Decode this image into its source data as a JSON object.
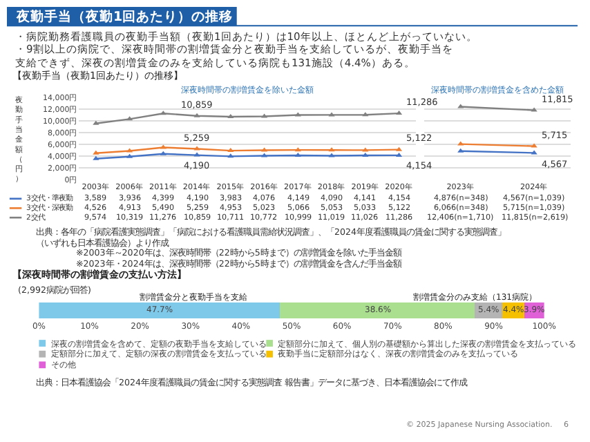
{
  "chart_data": [
    {
      "type": "line",
      "title": "夜勤手当（夜勤1回あたり）の推移",
      "ylabel": "夜勤手当金額（円）",
      "categories": [
        "2003年",
        "2006年",
        "2011年",
        "2014年",
        "2015年",
        "2016年",
        "2017年",
        "2018年",
        "2019年",
        "2020年"
      ],
      "series": [
        {
          "name": "3交代・準夜勤",
          "color": "#4472c4",
          "values": [
            3589,
            3936,
            4399,
            4190,
            3983,
            4076,
            4149,
            4090,
            4141,
            4154
          ],
          "value_labels": [
            "3,589",
            "3,936",
            "4,399",
            "4,190",
            "3,983",
            "4,076",
            "4,149",
            "4,090",
            "4,141",
            "4,154"
          ]
        },
        {
          "name": "3交代・深夜勤",
          "color": "#ed7d31",
          "values": [
            4526,
            4913,
            5490,
            5259,
            4953,
            5023,
            5066,
            5053,
            5033,
            5122
          ],
          "value_labels": [
            "4,526",
            "4,913",
            "5,490",
            "5,259",
            "4,953",
            "5,023",
            "5,066",
            "5,053",
            "5,033",
            "5,122"
          ]
        },
        {
          "name": "2交代",
          "color": "#808080",
          "values": [
            9574,
            10319,
            11276,
            10859,
            10711,
            10772,
            10999,
            11019,
            11026,
            11286
          ],
          "value_labels": [
            "9,574",
            "10,319",
            "11,276",
            "10,859",
            "10,711",
            "10,772",
            "10,999",
            "11,019",
            "11,026",
            "11,286"
          ]
        }
      ],
      "ylim": [
        0,
        14000
      ],
      "yticks": [
        {
          "value": 0,
          "label": "0円"
        },
        {
          "value": 2000,
          "label": "2,000円"
        },
        {
          "value": 4000,
          "label": "4,000円"
        },
        {
          "value": 6000,
          "label": "6,000円"
        },
        {
          "value": 8000,
          "label": "8,000円"
        },
        {
          "value": 10000,
          "label": "10,000円"
        },
        {
          "value": 12000,
          "label": "12,000円"
        },
        {
          "value": 14000,
          "label": "14,000円"
        }
      ],
      "grid": "y",
      "marker": "triangle",
      "line_style": "solid",
      "legend": "bottom left",
      "annotations": [
        "・病院勤務看護職員の夜勤手当額（夜勤1回あたり）は10年以上、ほとんど上がっていない。",
        "・9割以上の病院で、深夜時間帯の割増賃金分と夜勤手当を支給しているが、夜勤手当を支給できず、深夜の割増賃金のみを支給している病院も131施設（4.4%）ある。",
        "【夜勤手当（夜勤1回あたり）の推移】",
        "深夜時間帯の割増賃金を除いた金額",
        "出典：各年の「病院看護実態調査」「病院における看護職員需給状況調査」、「2024年度看護職員の賃金に関する実態調査」（いずれも日本看護協会）より作成",
        "※2003年～2020年は、深夜時間帯（22時から5時まで）の割増賃金を除いた手当金額",
        "※2023年・2024年は、深夜時間帯（22時から5時まで）の割増賃金を含んだ手当金額",
        {
          "text": "10,859",
          "x": "2014年",
          "y": 10859
        },
        {
          "text": "5,259",
          "x": "2014年",
          "y": 5259
        },
        {
          "text": "4,190",
          "x": "2014年",
          "y": 4190
        },
        {
          "text": "11,286",
          "x": "2020年",
          "y": 11286
        },
        {
          "text": "5,122",
          "x": "2020年",
          "y": 5122
        },
        {
          "text": "4,154",
          "x": "2020年",
          "y": 4154
        }
      ]
    },
    {
      "type": "line",
      "categories": [
        "2023年",
        "2024年"
      ],
      "series": [
        {
          "color": "#4472c4",
          "values": [
            4876,
            4567
          ],
          "value_labels": [
            "4,876(n=348)",
            "4,567(n=1,039)"
          ]
        },
        {
          "color": "#ed7d31",
          "values": [
            6066,
            5715
          ],
          "value_labels": [
            "6,066(n=348)",
            "5,715(n=1,039)"
          ]
        },
        {
          "color": "#808080",
          "values": [
            12406,
            11815
          ],
          "value_labels": [
            "12,406(n=1,710)",
            "11,815(n=2,619)"
          ]
        }
      ],
      "ylim": [
        0,
        14000
      ],
      "yticks": [
        {
          "value": 0,
          "label": null
        },
        {
          "value": 2000,
          "label": null
        },
        {
          "value": 4000,
          "label": null
        },
        {
          "value": 6000,
          "label": null
        },
        {
          "value": 8000,
          "label": null
        },
        {
          "value": 10000,
          "label": null
        },
        {
          "value": 12000,
          "label": null
        },
        {
          "value": 14000,
          "label": null
        }
      ],
      "tick_labels": "x",
      "grid": "y",
      "marker": "triangle",
      "line_style": "solid",
      "annotations": [
        "深夜時間帯の割増賃金を含めた金額",
        {
          "text": "11,815",
          "x": "2024年",
          "y": 11815
        },
        {
          "text": "5,715",
          "x": "2024年",
          "y": 5715
        },
        {
          "text": "4,567",
          "x": "2024年",
          "y": 4567
        }
      ]
    },
    {
      "type": "bar",
      "orientation": "horizontal",
      "stacked": true,
      "title": "【深夜時間帯の割増賃金の支払い方法】",
      "subtitle": "(2,992病院が回答)",
      "categories": [
        null
      ],
      "series": [
        {
          "name": "深夜の割増賃金を含めて、定額の夜勤手当を支給している",
          "color": "#7ec8ea",
          "values": [
            47.7
          ],
          "value_labels": [
            "47.7%"
          ]
        },
        {
          "name": "定額部分に加えて、個人別の基礎額から算出した深夜の割増賃金を支払っている",
          "color": "#a9df8e",
          "values": [
            38.6
          ],
          "value_labels": [
            "38.6%"
          ]
        },
        {
          "name": "定額部分に加えて、定額の深夜の割増賃金を支払っている",
          "color": "#b4b4b4",
          "values": [
            5.4
          ],
          "value_labels": [
            "5.4%"
          ]
        },
        {
          "name": "夜勤手当に定額部分はなく、深夜の割増賃金のみを支払っている",
          "color": "#f5c000",
          "values": [
            4.4
          ],
          "value_labels": [
            "4.4%"
          ]
        },
        {
          "name": "その他",
          "color": "#e060d8",
          "values": [
            3.9
          ],
          "value_labels": [
            "3.9%"
          ]
        }
      ],
      "xlim": [
        0,
        100
      ],
      "xticks": [
        {
          "value": 0,
          "label": "0%"
        },
        {
          "value": 10,
          "label": "10%"
        },
        {
          "value": 20,
          "label": "20%"
        },
        {
          "value": 30,
          "label": "30%"
        },
        {
          "value": 40,
          "label": "40%"
        },
        {
          "value": 50,
          "label": "50%"
        },
        {
          "value": 60,
          "label": "60%"
        },
        {
          "value": 70,
          "label": "70%"
        },
        {
          "value": 80,
          "label": "80%"
        },
        {
          "value": 90,
          "label": "90%"
        },
        {
          "value": 100,
          "label": "100%"
        }
      ],
      "legend": "bottom",
      "annotations": [
        "割増賃金分と夜勤手当を支給",
        "割増賃金分のみ支給（131病院）",
        "出典：日本看護協会「2024年度看護職員の賃金に関する実態調査 報告書」データに基づき、日本看護協会にて作成",
        "© 2025 Japanese Nursing Association.",
        "6"
      ]
    }
  ]
}
